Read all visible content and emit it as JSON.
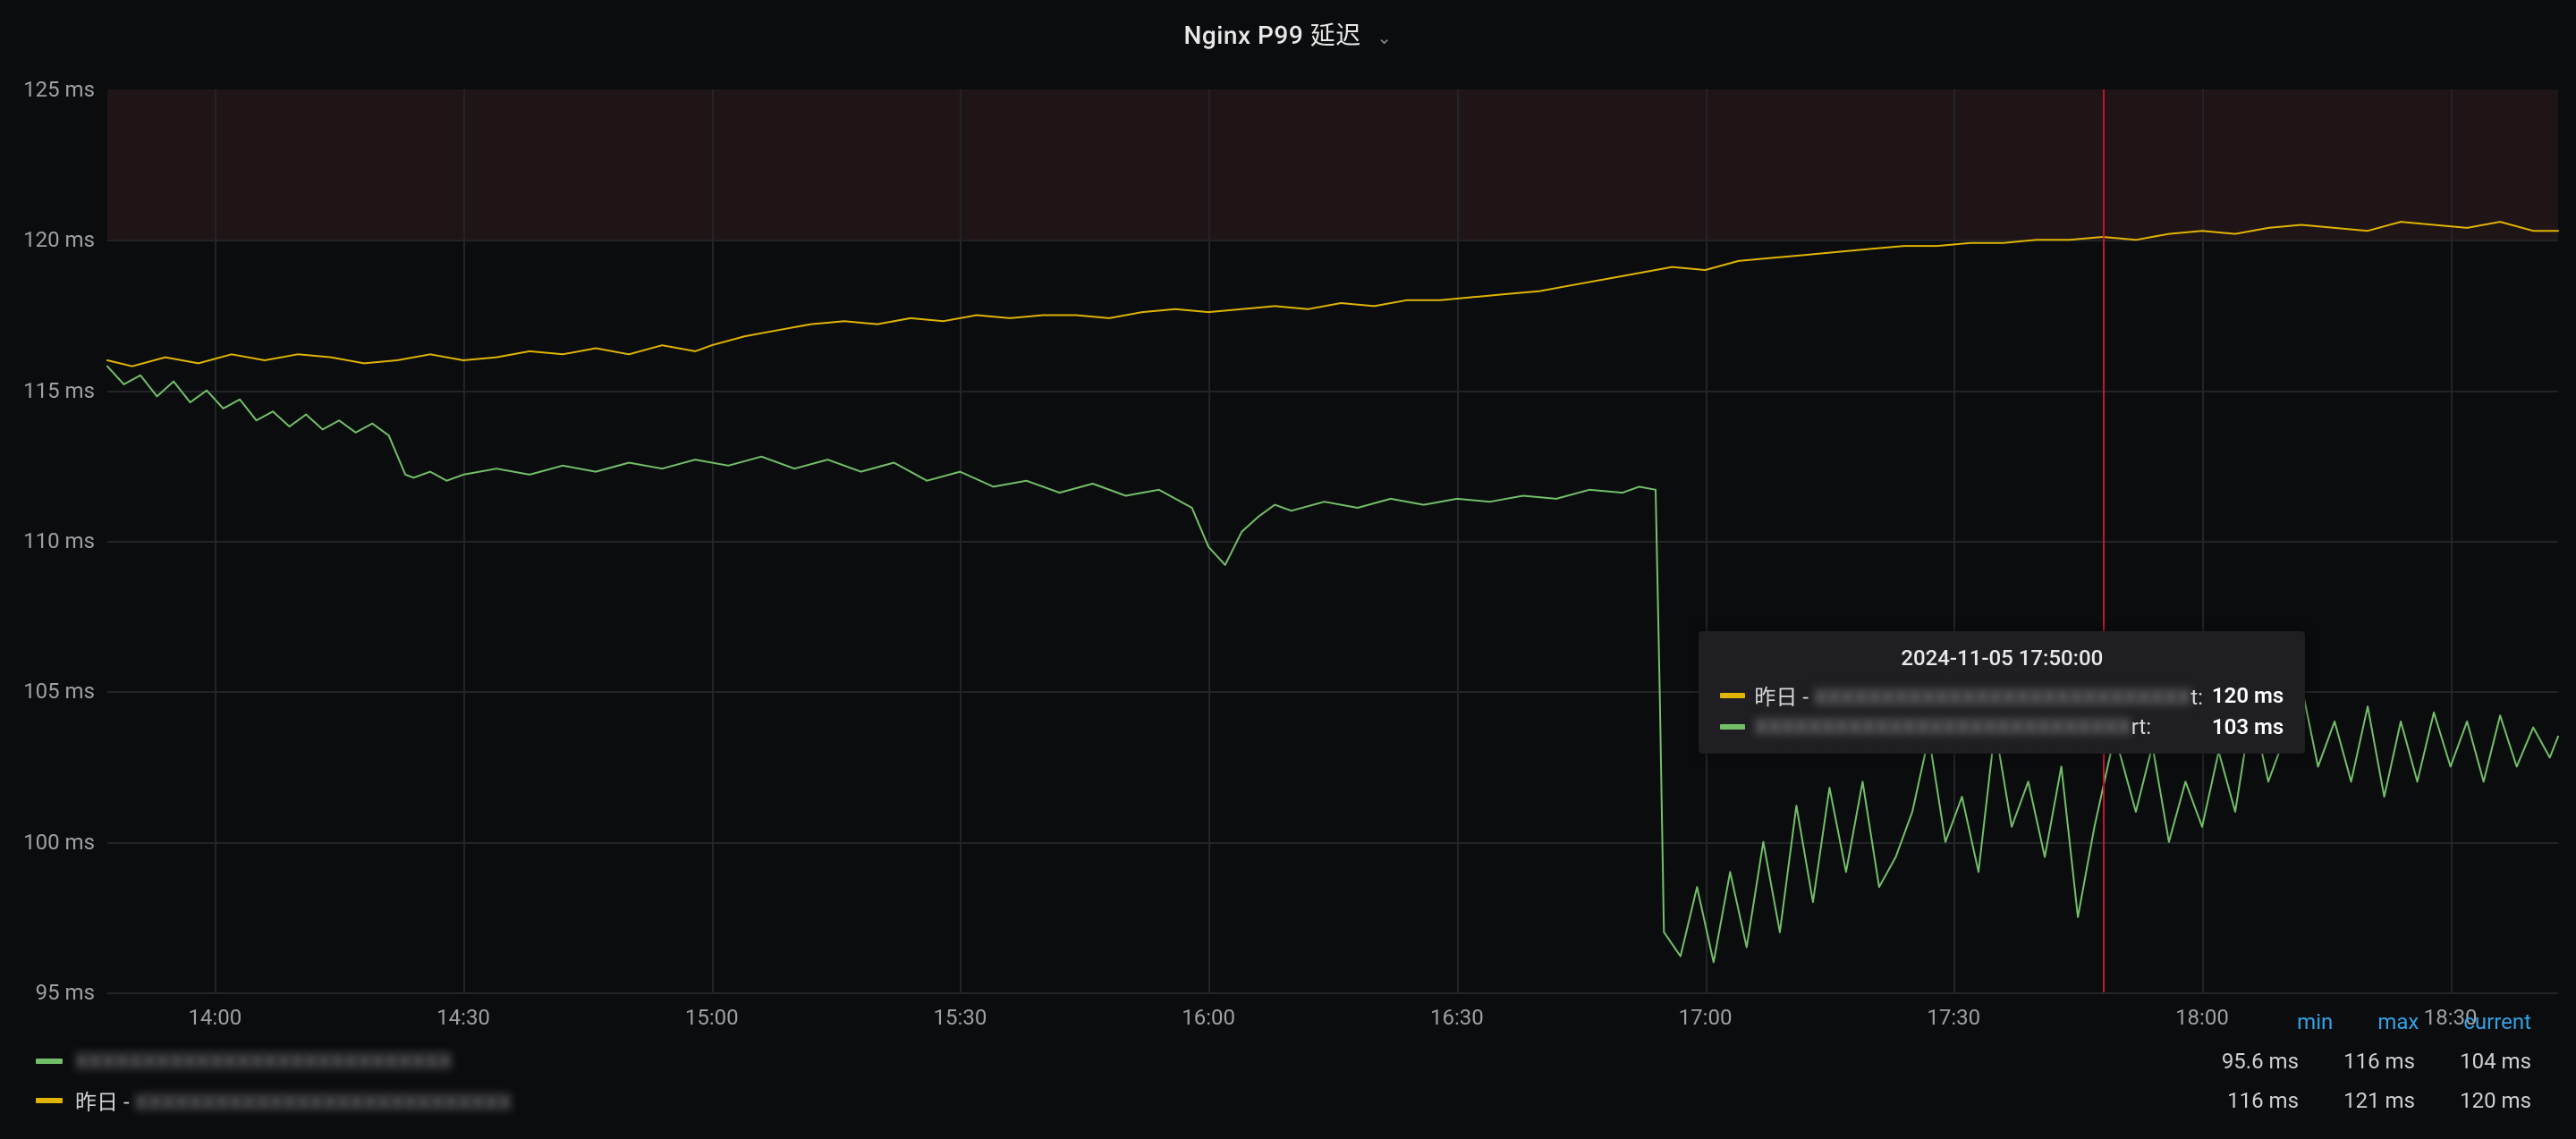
{
  "panel": {
    "title": "Nginx P99 延迟",
    "background_color": "#0b0c0e",
    "grid_color": "#232428",
    "axis_label_color": "#9ea0a3",
    "title_color": "#e8e8e8",
    "title_fontsize": 28
  },
  "chart": {
    "type": "line",
    "x": {
      "start_min": 827,
      "end_min": 1123,
      "tick_labels": [
        "14:00",
        "14:30",
        "15:00",
        "15:30",
        "16:00",
        "16:30",
        "17:00",
        "17:30",
        "18:00",
        "18:30"
      ],
      "tick_min": [
        840,
        870,
        900,
        930,
        960,
        990,
        1020,
        1050,
        1080,
        1110
      ]
    },
    "y": {
      "min": 95,
      "max": 125,
      "tick_labels": [
        "95 ms",
        "100 ms",
        "105 ms",
        "110 ms",
        "115 ms",
        "120 ms",
        "125 ms"
      ],
      "tick_vals": [
        95,
        100,
        105,
        110,
        115,
        120,
        125
      ],
      "unit": "ms"
    },
    "warn_band": {
      "from": 120,
      "to": 125,
      "color": "rgba(120,60,60,0.18)"
    },
    "red_marker": {
      "at_min": 1068,
      "color": "#c4162a"
    },
    "series": [
      {
        "id": "yesterday",
        "display_name_prefix": "昨日 - ",
        "display_name_blurred": "XXXXXXXXXXXXXXXXXXXXXXXXXXXX",
        "display_name_suffix": "t:",
        "color": "#e0b400",
        "line_width": 2,
        "data": [
          [
            827,
            116.0
          ],
          [
            830,
            115.8
          ],
          [
            834,
            116.1
          ],
          [
            838,
            115.9
          ],
          [
            842,
            116.2
          ],
          [
            846,
            116.0
          ],
          [
            850,
            116.2
          ],
          [
            854,
            116.1
          ],
          [
            858,
            115.9
          ],
          [
            862,
            116.0
          ],
          [
            866,
            116.2
          ],
          [
            870,
            116.0
          ],
          [
            874,
            116.1
          ],
          [
            878,
            116.3
          ],
          [
            882,
            116.2
          ],
          [
            886,
            116.4
          ],
          [
            890,
            116.2
          ],
          [
            894,
            116.5
          ],
          [
            898,
            116.3
          ],
          [
            900,
            116.5
          ],
          [
            904,
            116.8
          ],
          [
            908,
            117.0
          ],
          [
            912,
            117.2
          ],
          [
            916,
            117.3
          ],
          [
            920,
            117.2
          ],
          [
            924,
            117.4
          ],
          [
            928,
            117.3
          ],
          [
            932,
            117.5
          ],
          [
            936,
            117.4
          ],
          [
            940,
            117.5
          ],
          [
            944,
            117.5
          ],
          [
            948,
            117.4
          ],
          [
            952,
            117.6
          ],
          [
            956,
            117.7
          ],
          [
            960,
            117.6
          ],
          [
            964,
            117.7
          ],
          [
            968,
            117.8
          ],
          [
            972,
            117.7
          ],
          [
            976,
            117.9
          ],
          [
            980,
            117.8
          ],
          [
            984,
            118.0
          ],
          [
            988,
            118.0
          ],
          [
            992,
            118.1
          ],
          [
            996,
            118.2
          ],
          [
            1000,
            118.3
          ],
          [
            1004,
            118.5
          ],
          [
            1008,
            118.7
          ],
          [
            1012,
            118.9
          ],
          [
            1016,
            119.1
          ],
          [
            1020,
            119.0
          ],
          [
            1024,
            119.3
          ],
          [
            1028,
            119.4
          ],
          [
            1032,
            119.5
          ],
          [
            1036,
            119.6
          ],
          [
            1040,
            119.7
          ],
          [
            1044,
            119.8
          ],
          [
            1048,
            119.8
          ],
          [
            1052,
            119.9
          ],
          [
            1056,
            119.9
          ],
          [
            1060,
            120.0
          ],
          [
            1064,
            120.0
          ],
          [
            1068,
            120.1
          ],
          [
            1072,
            120.0
          ],
          [
            1076,
            120.2
          ],
          [
            1080,
            120.3
          ],
          [
            1084,
            120.2
          ],
          [
            1088,
            120.4
          ],
          [
            1092,
            120.5
          ],
          [
            1096,
            120.4
          ],
          [
            1100,
            120.3
          ],
          [
            1104,
            120.6
          ],
          [
            1108,
            120.5
          ],
          [
            1112,
            120.4
          ],
          [
            1116,
            120.6
          ],
          [
            1120,
            120.3
          ],
          [
            1123,
            120.3
          ]
        ]
      },
      {
        "id": "today",
        "display_name_prefix": "",
        "display_name_blurred": "XXXXXXXXXXXXXXXXXXXXXXXXXXXX",
        "display_name_suffix": "rt:",
        "color": "#73bf69",
        "line_width": 2,
        "data": [
          [
            827,
            115.8
          ],
          [
            829,
            115.2
          ],
          [
            831,
            115.5
          ],
          [
            833,
            114.8
          ],
          [
            835,
            115.3
          ],
          [
            837,
            114.6
          ],
          [
            839,
            115.0
          ],
          [
            841,
            114.4
          ],
          [
            843,
            114.7
          ],
          [
            845,
            114.0
          ],
          [
            847,
            114.3
          ],
          [
            849,
            113.8
          ],
          [
            851,
            114.2
          ],
          [
            853,
            113.7
          ],
          [
            855,
            114.0
          ],
          [
            857,
            113.6
          ],
          [
            859,
            113.9
          ],
          [
            861,
            113.5
          ],
          [
            863,
            112.2
          ],
          [
            864,
            112.1
          ],
          [
            866,
            112.3
          ],
          [
            868,
            112.0
          ],
          [
            870,
            112.2
          ],
          [
            874,
            112.4
          ],
          [
            878,
            112.2
          ],
          [
            882,
            112.5
          ],
          [
            886,
            112.3
          ],
          [
            890,
            112.6
          ],
          [
            894,
            112.4
          ],
          [
            898,
            112.7
          ],
          [
            902,
            112.5
          ],
          [
            906,
            112.8
          ],
          [
            910,
            112.4
          ],
          [
            914,
            112.7
          ],
          [
            918,
            112.3
          ],
          [
            922,
            112.6
          ],
          [
            926,
            112.0
          ],
          [
            930,
            112.3
          ],
          [
            934,
            111.8
          ],
          [
            938,
            112.0
          ],
          [
            942,
            111.6
          ],
          [
            946,
            111.9
          ],
          [
            950,
            111.5
          ],
          [
            954,
            111.7
          ],
          [
            956,
            111.4
          ],
          [
            958,
            111.1
          ],
          [
            960,
            109.8
          ],
          [
            962,
            109.2
          ],
          [
            964,
            110.3
          ],
          [
            966,
            110.8
          ],
          [
            968,
            111.2
          ],
          [
            970,
            111.0
          ],
          [
            974,
            111.3
          ],
          [
            978,
            111.1
          ],
          [
            982,
            111.4
          ],
          [
            986,
            111.2
          ],
          [
            990,
            111.4
          ],
          [
            994,
            111.3
          ],
          [
            998,
            111.5
          ],
          [
            1002,
            111.4
          ],
          [
            1006,
            111.7
          ],
          [
            1010,
            111.6
          ],
          [
            1012,
            111.8
          ],
          [
            1014,
            111.7
          ],
          [
            1014.5,
            105.0
          ],
          [
            1015,
            97.0
          ],
          [
            1017,
            96.2
          ],
          [
            1019,
            98.5
          ],
          [
            1021,
            96.0
          ],
          [
            1023,
            99.0
          ],
          [
            1025,
            96.5
          ],
          [
            1027,
            100.0
          ],
          [
            1029,
            97.0
          ],
          [
            1031,
            101.2
          ],
          [
            1033,
            98.0
          ],
          [
            1035,
            101.8
          ],
          [
            1037,
            99.0
          ],
          [
            1039,
            102.0
          ],
          [
            1041,
            98.5
          ],
          [
            1043,
            99.5
          ],
          [
            1045,
            101.0
          ],
          [
            1047,
            103.5
          ],
          [
            1049,
            100.0
          ],
          [
            1051,
            101.5
          ],
          [
            1053,
            99.0
          ],
          [
            1055,
            103.8
          ],
          [
            1057,
            100.5
          ],
          [
            1059,
            102.0
          ],
          [
            1061,
            99.5
          ],
          [
            1063,
            102.5
          ],
          [
            1065,
            97.5
          ],
          [
            1067,
            100.5
          ],
          [
            1069,
            103.0
          ],
          [
            1070,
            103.0
          ],
          [
            1072,
            101.0
          ],
          [
            1074,
            103.2
          ],
          [
            1076,
            100.0
          ],
          [
            1078,
            102.0
          ],
          [
            1080,
            100.5
          ],
          [
            1082,
            103.0
          ],
          [
            1084,
            101.0
          ],
          [
            1086,
            104.5
          ],
          [
            1088,
            102.0
          ],
          [
            1090,
            103.5
          ],
          [
            1092,
            105.2
          ],
          [
            1094,
            102.5
          ],
          [
            1096,
            104.0
          ],
          [
            1098,
            102.0
          ],
          [
            1100,
            104.5
          ],
          [
            1102,
            101.5
          ],
          [
            1104,
            104.0
          ],
          [
            1106,
            102.0
          ],
          [
            1108,
            104.3
          ],
          [
            1110,
            102.5
          ],
          [
            1112,
            104.0
          ],
          [
            1114,
            102.0
          ],
          [
            1116,
            104.2
          ],
          [
            1118,
            102.5
          ],
          [
            1120,
            103.8
          ],
          [
            1122,
            102.8
          ],
          [
            1123,
            103.5
          ]
        ]
      }
    ],
    "tooltip": {
      "at_min": 1070,
      "title": "2024-11-05 17:50:00",
      "rows": [
        {
          "series": "yesterday",
          "value": "120 ms"
        },
        {
          "series": "today",
          "value": "103 ms"
        }
      ],
      "background_color": "#1f1f23"
    }
  },
  "legend": {
    "header": {
      "min": "min",
      "max": "max",
      "current": "current",
      "color": "#33a2e5"
    },
    "rows": [
      {
        "series": "today",
        "min": "95.6 ms",
        "max": "116 ms",
        "current": "104 ms"
      },
      {
        "series": "yesterday",
        "min": "116 ms",
        "max": "121 ms",
        "current": "120 ms"
      }
    ]
  }
}
